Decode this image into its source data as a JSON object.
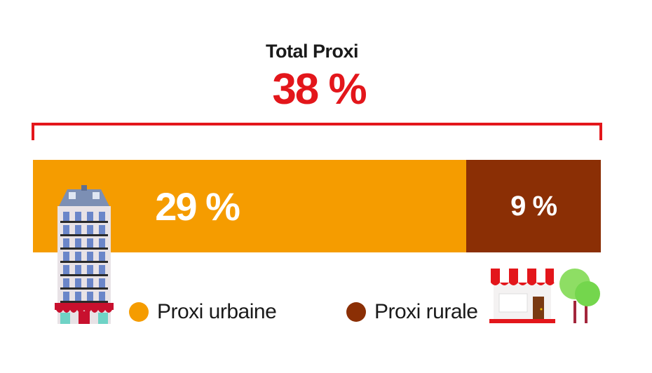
{
  "chart_data": {
    "type": "bar",
    "orientation": "horizontal-stacked",
    "title": "Total Proxi",
    "total": {
      "value": 38,
      "label": "38 %"
    },
    "series": [
      {
        "name": "Proxi urbaine",
        "value": 29,
        "label": "29 %",
        "color": "#f59c00"
      },
      {
        "name": "Proxi rurale",
        "value": 9,
        "label": "9 %",
        "color": "#8b2f05"
      }
    ],
    "accent_color": "#e3161b",
    "legend_position": "bottom"
  },
  "icons": {
    "building": "apartment-building-icon",
    "shop": "storefront-icon",
    "trees": "trees-icon"
  }
}
